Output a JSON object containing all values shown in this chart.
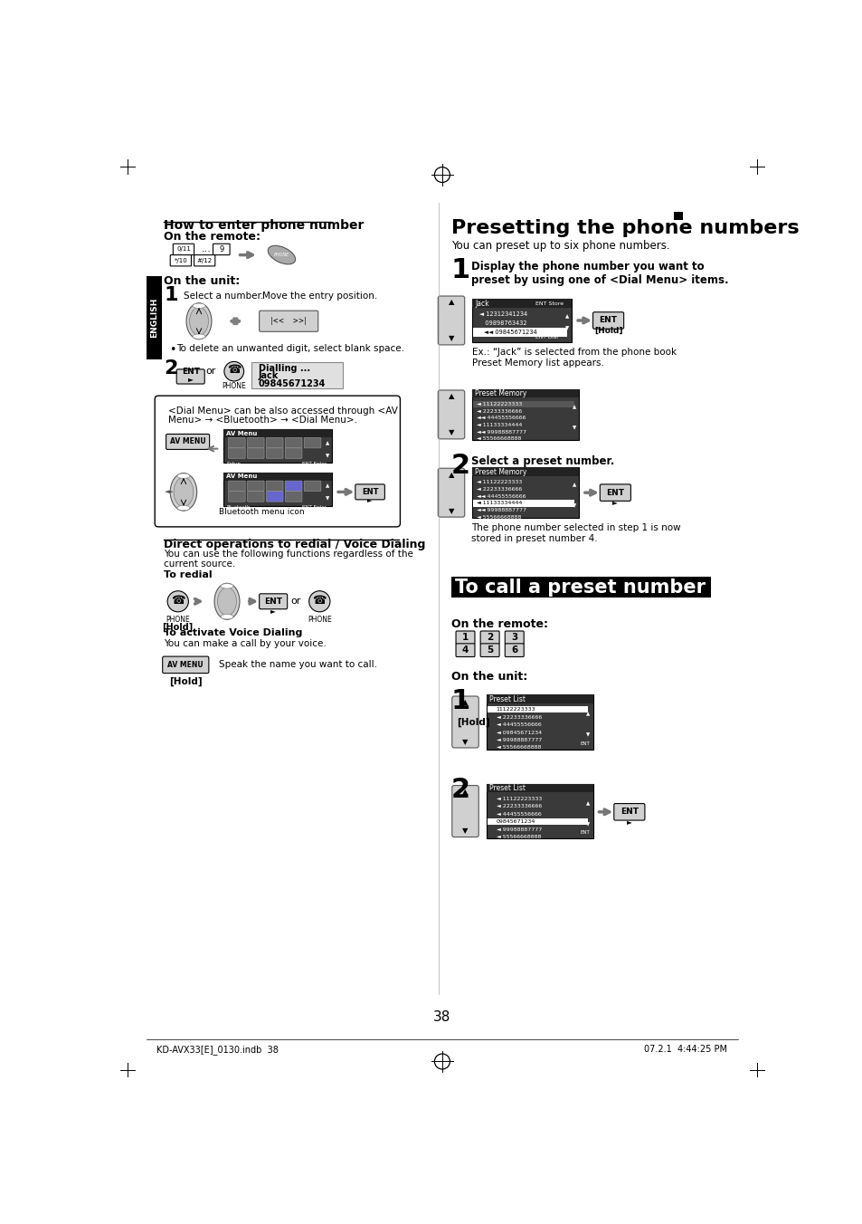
{
  "bg_color": "#ffffff",
  "page_number": "38",
  "footer_left": "KD-AVX33[E]_0130.indb  38",
  "footer_right": "07.2.1  4:44:25 PM",
  "section_titles": {
    "how_to": "How to enter phone number",
    "presetting": "Presetting the phone numbers",
    "to_call": "To call a preset number"
  },
  "presetting_subtitle": "You can preset up to six phone numbers.",
  "on_the_remote": "On the remote:",
  "on_the_unit": "On the unit:",
  "step1_text_presetting": "Display the phone number you want to\npreset by using one of <Dial Menu> items.",
  "ex_text": "Ex.: “Jack” is selected from the phone book",
  "preset_memory_appears": "Preset Memory list appears.",
  "step2_text_presetting": "Select a preset number.",
  "step2_note": "The phone number selected in step 1 is now\nstored in preset number 4.",
  "bluetooth_menu_icon": "Bluetooth menu icon",
  "direct_ops_title": "Direct operations to redial / Voice Dialing",
  "direct_ops_text": "You can use the following functions regardless of the\ncurrent source.",
  "to_redial": "To redial",
  "to_activate": "To activate Voice Dialing",
  "voice_dialing_text": "You can make a call by your voice.",
  "speak_text": "Speak the name you want to call.",
  "how_to_bullet": "To delete an unwanted digit, select blank space.",
  "dialling_box_line1": "Dialling ...",
  "dialling_box_line2": "Jack",
  "dialling_box_line3": "09845671234",
  "or_text": "or",
  "preset_list_numbers": [
    "11122223333",
    "22233336666",
    "44455556666",
    "09845671234",
    "99988887777",
    "55566668888"
  ],
  "preset_memory_numbers_1": [
    "11122223333",
    "22233336666",
    "44455556666",
    "11133334444",
    "99988887777",
    "55566668888"
  ],
  "preset_memory_numbers_2": [
    "11122223333",
    "22233336666",
    "44455556666",
    "11133334444",
    "99988887777",
    "55566668888"
  ],
  "jack_dial_numbers": [
    "12312341234",
    "09898763432",
    "09845671234"
  ],
  "remote_buttons_call": [
    "1",
    "2",
    "3",
    "4",
    "5",
    "6"
  ],
  "hold_text": "[Hold]",
  "dial_menu_note_line1": "<Dial Menu> can be also accessed through <AV",
  "dial_menu_note_line2": "Menu> → <Bluetooth> → <Dial Menu>.",
  "select_number_text": "Select a number.",
  "move_entry_text": "Move the entry position."
}
